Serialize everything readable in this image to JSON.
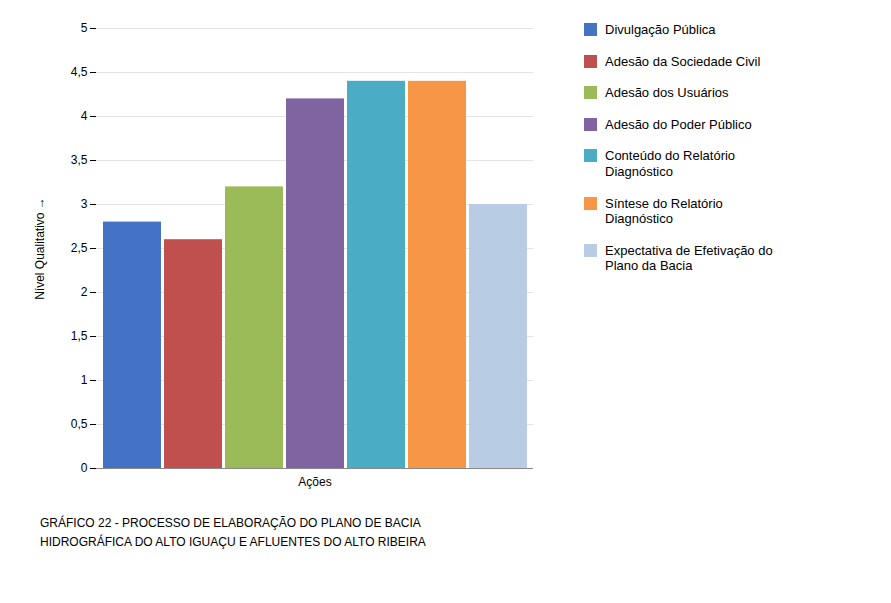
{
  "chart_data": {
    "type": "bar",
    "categories": [
      "Ações"
    ],
    "series": [
      {
        "name": "Divulgação Pública",
        "color": "#4472C4",
        "values": [
          2.8
        ]
      },
      {
        "name": "Adesão da Sociedade Civil",
        "color": "#C0504D",
        "values": [
          2.6
        ]
      },
      {
        "name": "Adesão dos Usuários",
        "color": "#9BBB59",
        "values": [
          3.2
        ]
      },
      {
        "name": "Adesão do Poder Público",
        "color": "#8064A2",
        "values": [
          4.2
        ]
      },
      {
        "name": "Conteúdo do Relatório\nDiagnóstico",
        "color": "#4BACC6",
        "values": [
          4.4
        ]
      },
      {
        "name": "Síntese do Relatório\nDiagnóstico",
        "color": "#F79646",
        "values": [
          4.4
        ]
      },
      {
        "name": "Expectativa de Efetivação do\nPlano da Bacia",
        "color": "#B8CCE4",
        "values": [
          3.0
        ]
      }
    ],
    "ylabel": "Nível Qualitativo",
    "caption": "GRÁFICO 22 - PROCESSO DE ELABORAÇÃO DO PLANO DE BACIA\nHIDROGRÁFICA DO ALTO IGUAÇU E AFLUENTES DO ALTO RIBEIRA",
    "ylim": [
      0,
      5
    ],
    "yticks": [
      0,
      {
        "value": 0.5,
        "label": "0,5"
      },
      1,
      {
        "value": 1.5,
        "label": "1,5"
      },
      2,
      {
        "value": 2.5,
        "label": "2,5"
      },
      3,
      {
        "value": 3.5,
        "label": "3,5"
      },
      4,
      {
        "value": 4.5,
        "label": "4,5"
      },
      5
    ],
    "grid": true,
    "legend": "right"
  }
}
